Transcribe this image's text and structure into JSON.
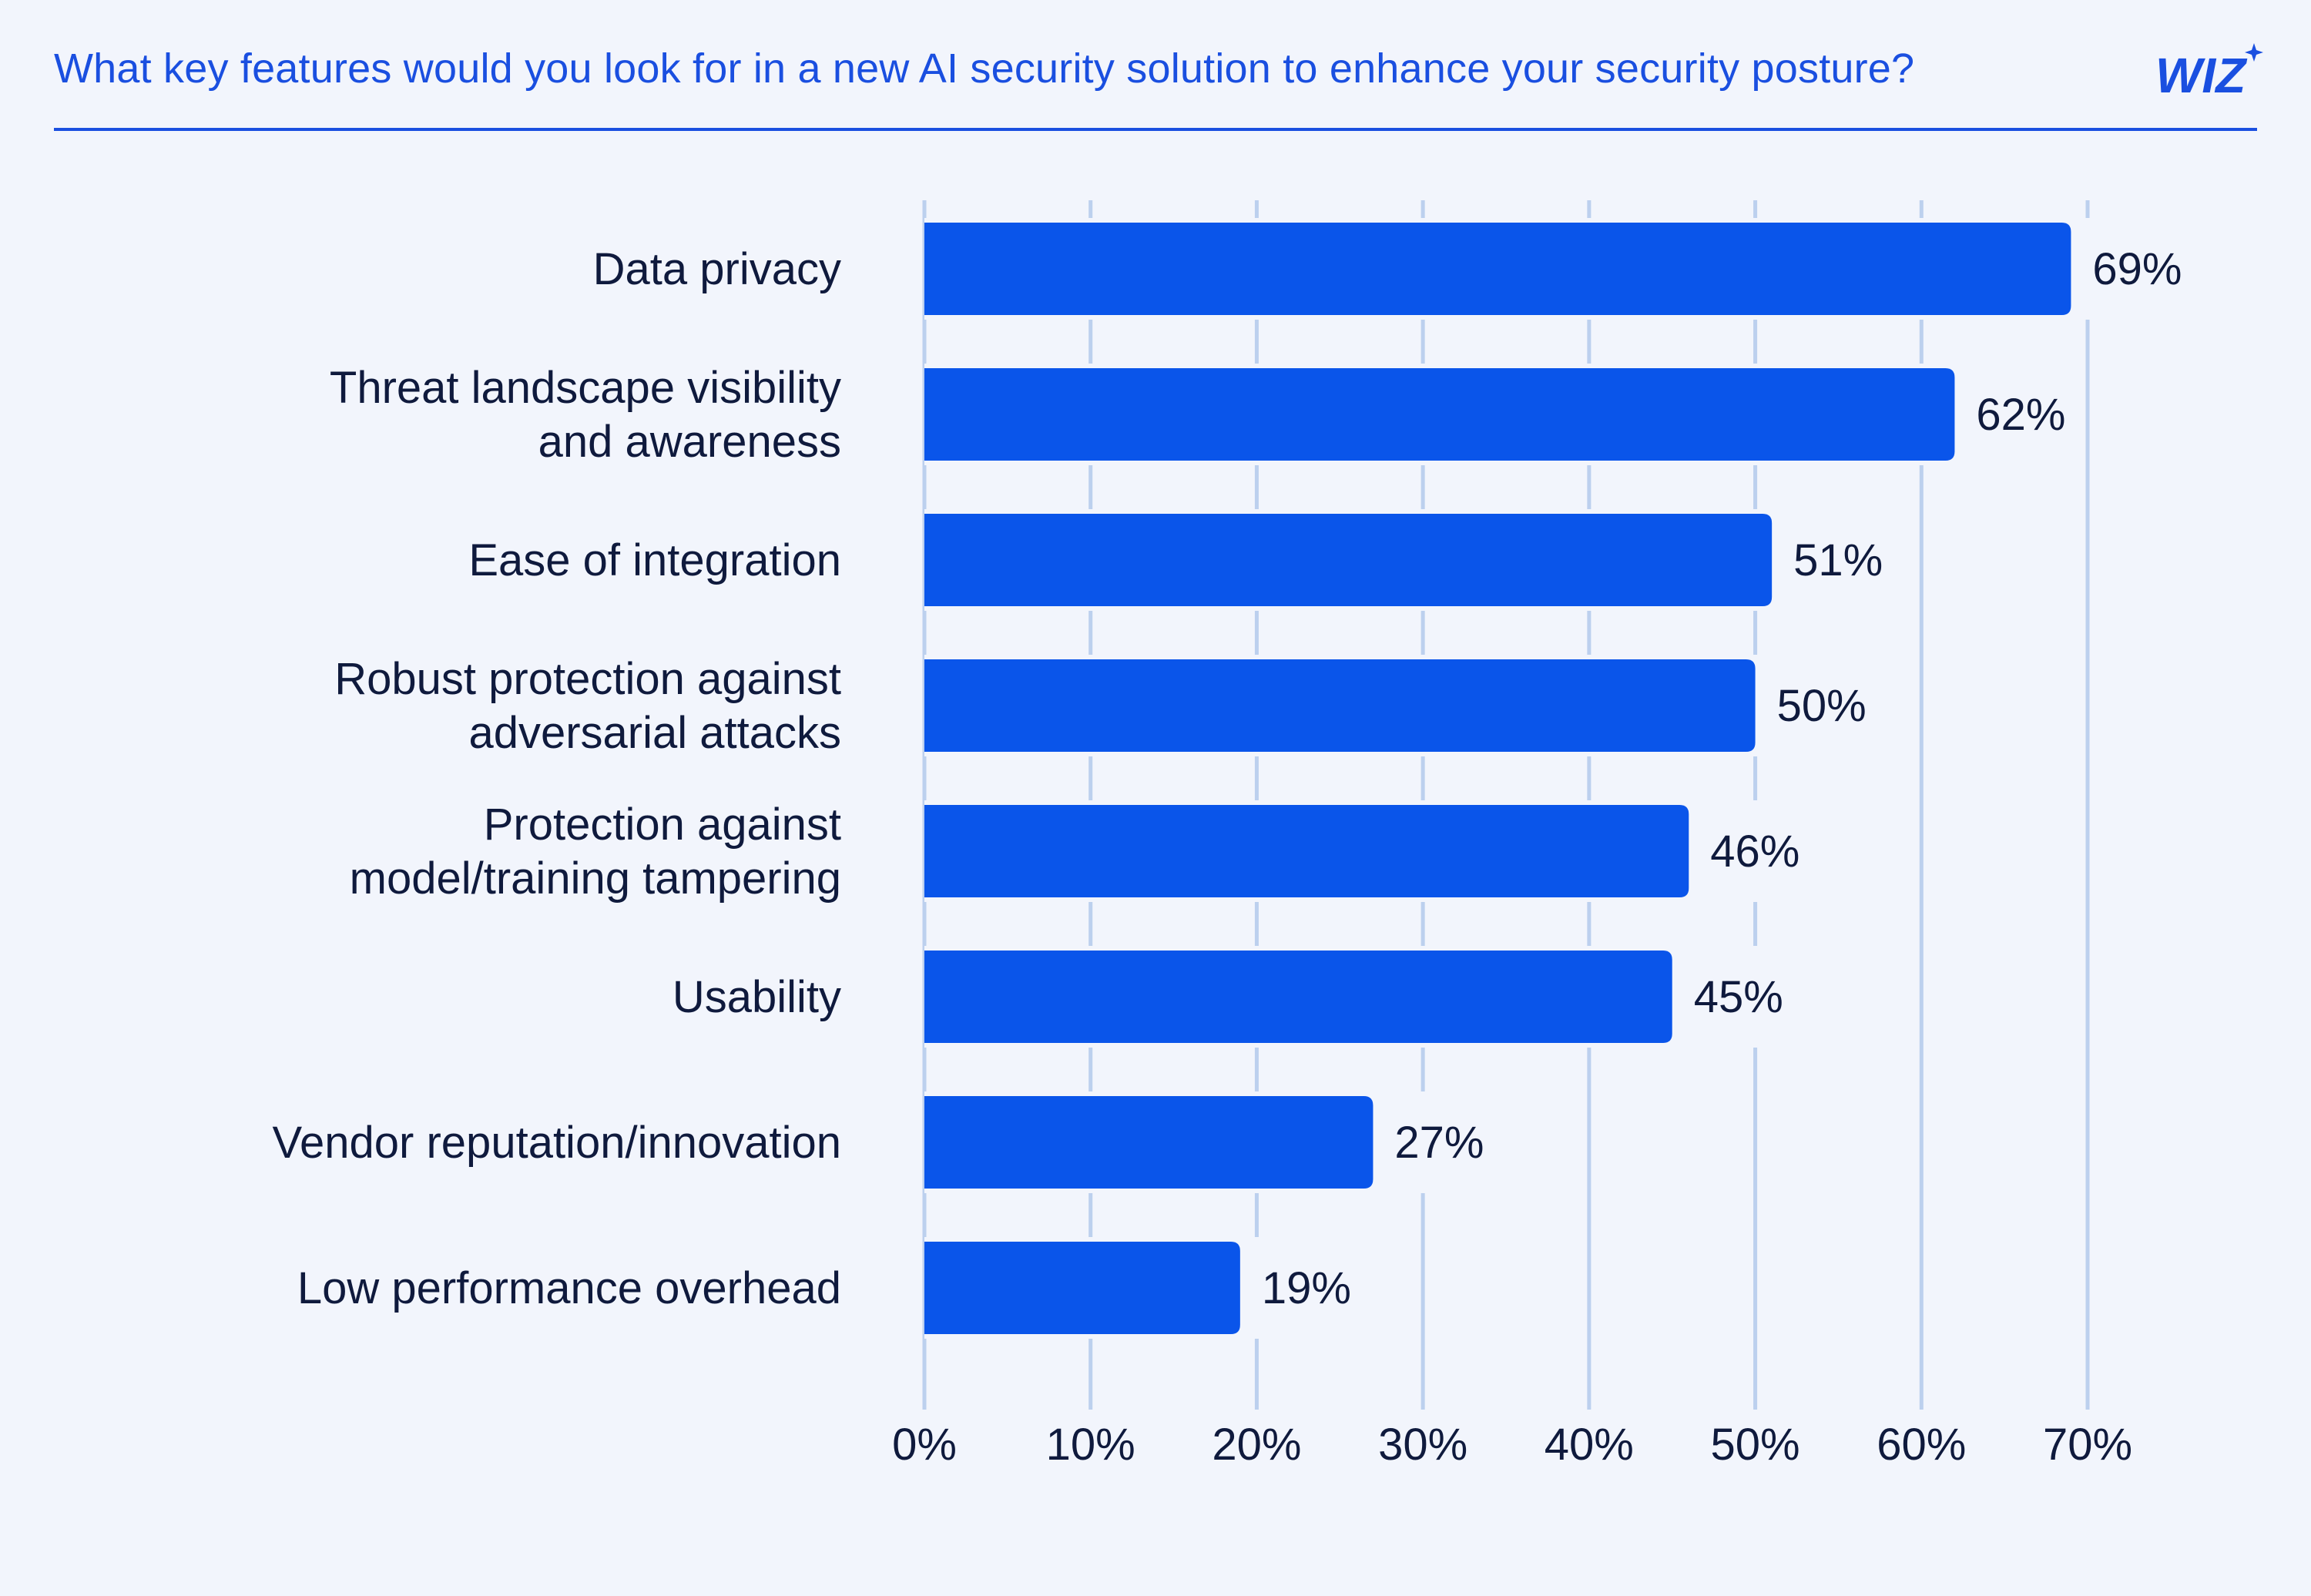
{
  "header": {
    "title": "What key features would you look for in a new AI security solution to enhance your security posture?",
    "logo_text": "WIZ",
    "logo_icon": "sparkle-icon"
  },
  "colors": {
    "bar": "#0a55ea",
    "accent": "#1a4fe0",
    "gridline": "#bcd0ee",
    "text": "#0f1a3d",
    "background": "#f2f5fc"
  },
  "chart_data": {
    "type": "bar",
    "orientation": "horizontal",
    "title": "What key features would you look for in a new AI security solution to enhance your security posture?",
    "xlabel": "",
    "ylabel": "",
    "categories": [
      "Data privacy",
      "Threat landscape visibility and awareness",
      "Ease of integration",
      "Robust protection against adversarial attacks",
      "Protection against model/training tampering",
      "Usability",
      "Vendor reputation/innovation",
      "Low performance overhead"
    ],
    "category_lines": [
      [
        "Data privacy"
      ],
      [
        "Threat landscape visibility",
        "and awareness"
      ],
      [
        "Ease of integration"
      ],
      [
        "Robust protection against",
        "adversarial attacks"
      ],
      [
        "Protection against",
        "model/training tampering"
      ],
      [
        "Usability"
      ],
      [
        "Vendor reputation/innovation"
      ],
      [
        "Low performance overhead"
      ]
    ],
    "values": [
      69,
      62,
      51,
      50,
      46,
      45,
      27,
      19
    ],
    "value_labels": [
      "69%",
      "62%",
      "51%",
      "50%",
      "46%",
      "45%",
      "27%",
      "19%"
    ],
    "xlim": [
      0,
      70
    ],
    "ticks": [
      0,
      10,
      20,
      30,
      40,
      50,
      60,
      70
    ],
    "tick_labels": [
      "0%",
      "10%",
      "20%",
      "30%",
      "40%",
      "50%",
      "60%",
      "70%"
    ],
    "grid": true
  }
}
